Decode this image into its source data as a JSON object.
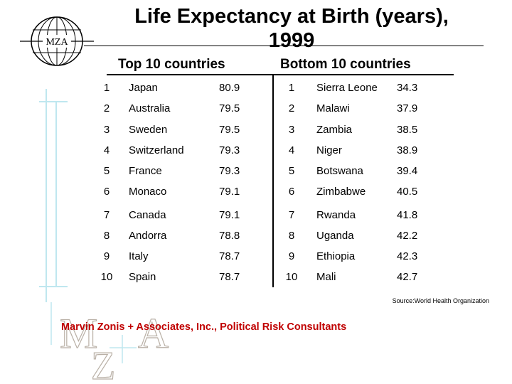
{
  "header": {
    "title_line1": "Life Expectancy at Birth (years),",
    "title_line2": "1999",
    "logo_text": "MZA"
  },
  "table": {
    "top_heading": "Top 10 countries",
    "bottom_heading": "Bottom 10 countries",
    "top": [
      {
        "rank": "1",
        "country": "Japan",
        "value": "80.9"
      },
      {
        "rank": "2",
        "country": "Australia",
        "value": "79.5"
      },
      {
        "rank": "3",
        "country": "Sweden",
        "value": "79.5"
      },
      {
        "rank": "4",
        "country": "Switzerland",
        "value": "79.3"
      },
      {
        "rank": "5",
        "country": "France",
        "value": "79.3"
      },
      {
        "rank": "6",
        "country": "Monaco",
        "value": "79.1"
      },
      {
        "rank": "7",
        "country": "Canada",
        "value": "79.1"
      },
      {
        "rank": "8",
        "country": "Andorra",
        "value": "78.8"
      },
      {
        "rank": "9",
        "country": "Italy",
        "value": "78.7"
      },
      {
        "rank": "10",
        "country": "Spain",
        "value": "78.7"
      }
    ],
    "bottom": [
      {
        "rank": "1",
        "country": "Sierra Leone",
        "value": "34.3"
      },
      {
        "rank": "2",
        "country": "Malawi",
        "value": "37.9"
      },
      {
        "rank": "3",
        "country": "Zambia",
        "value": "38.5"
      },
      {
        "rank": "4",
        "country": "Niger",
        "value": "38.9"
      },
      {
        "rank": "5",
        "country": "Botswana",
        "value": "39.4"
      },
      {
        "rank": "6",
        "country": "Zimbabwe",
        "value": "40.5"
      },
      {
        "rank": "7",
        "country": "Rwanda",
        "value": "41.8"
      },
      {
        "rank": "8",
        "country": "Uganda",
        "value": "42.2"
      },
      {
        "rank": "9",
        "country": "Ethiopia",
        "value": "42.3"
      },
      {
        "rank": "10",
        "country": "Mali",
        "value": "42.7"
      }
    ]
  },
  "source": "Source:World Health Organization",
  "footer": {
    "firm_name": "Marvin Zonis + Associates, Inc., Political Risk Consultants",
    "monogram": [
      "M",
      "Z",
      "A"
    ]
  },
  "colors": {
    "firm_name": "#c00000",
    "monogram_outline": "#b9b0a6",
    "decor_cyan": "#bfe7ef"
  }
}
